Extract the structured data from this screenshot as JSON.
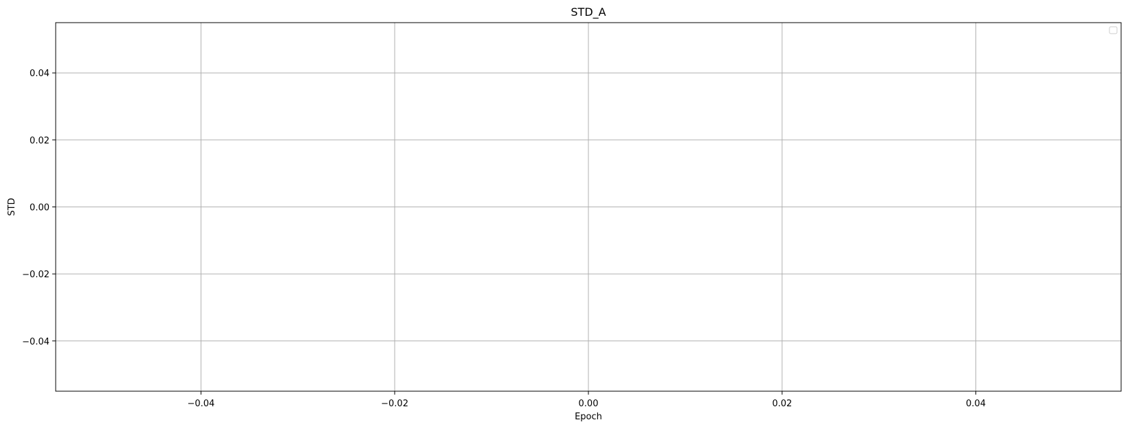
{
  "chart_data": {
    "type": "line",
    "title": "STD_A",
    "xlabel": "Epoch",
    "ylabel": "STD",
    "xlim": [
      -0.055,
      0.055
    ],
    "ylim": [
      -0.055,
      0.055
    ],
    "x_ticks": [
      -0.04,
      -0.02,
      0.0,
      0.02,
      0.04
    ],
    "x_tick_labels": [
      "−0.04",
      "−0.02",
      "0.00",
      "0.02",
      "0.04"
    ],
    "y_ticks": [
      0.04,
      0.02,
      0.0,
      -0.02,
      -0.04
    ],
    "y_tick_labels": [
      "0.04",
      "0.02",
      "0.00",
      "−0.02",
      "−0.04"
    ],
    "series": [],
    "grid": true,
    "legend": {
      "position": "top-right",
      "entries": []
    },
    "colors": {
      "grid": "#b0b0b0",
      "axes": "#000000",
      "background": "#ffffff"
    }
  }
}
